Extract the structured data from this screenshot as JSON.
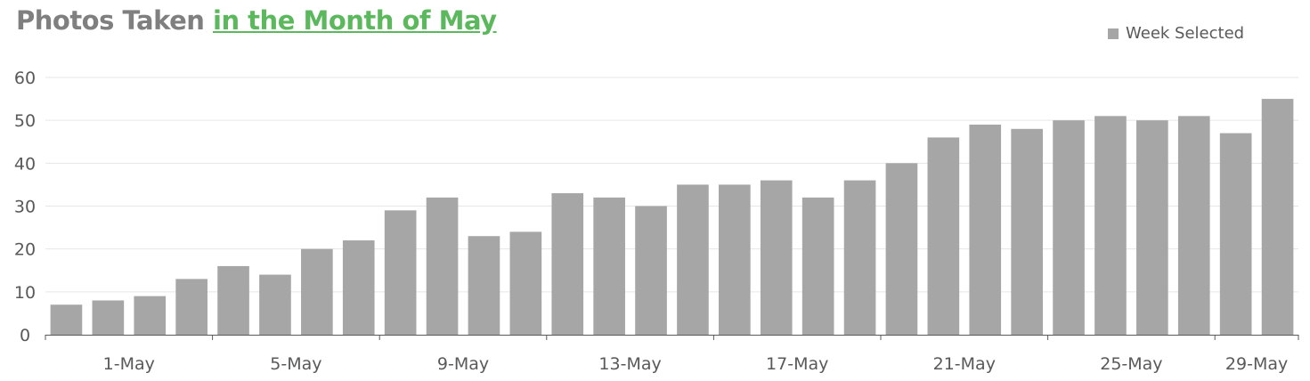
{
  "title": {
    "main": "Photos Taken ",
    "accent": "in the Month of May"
  },
  "colors": {
    "bar": "#a6a6a6",
    "accent": "#5cb85c",
    "title": "#7f7f7f",
    "grid": "#e6e6e6",
    "axis": "#595959"
  },
  "chart_data": {
    "type": "bar",
    "title": "Photos Taken in the Month of May",
    "xlabel": "",
    "ylabel": "",
    "ylim": [
      0,
      60
    ],
    "yticks": [
      0,
      10,
      20,
      30,
      40,
      50,
      60
    ],
    "grid": true,
    "legend": "top-right",
    "categories": [
      "1-May",
      "2-May",
      "3-May",
      "4-May",
      "5-May",
      "6-May",
      "7-May",
      "8-May",
      "9-May",
      "10-May",
      "11-May",
      "12-May",
      "13-May",
      "14-May",
      "15-May",
      "16-May",
      "17-May",
      "18-May",
      "19-May",
      "20-May",
      "21-May",
      "22-May",
      "23-May",
      "24-May",
      "25-May",
      "26-May",
      "27-May",
      "28-May",
      "29-May",
      "30-May"
    ],
    "xtick_labels": [
      "1-May",
      "5-May",
      "9-May",
      "13-May",
      "17-May",
      "21-May",
      "25-May",
      "29-May"
    ],
    "series": [
      {
        "name": "Week Selected",
        "values": [
          7,
          8,
          9,
          13,
          16,
          14,
          20,
          22,
          29,
          32,
          23,
          24,
          33,
          32,
          30,
          35,
          35,
          36,
          32,
          36,
          40,
          46,
          49,
          48,
          50,
          51,
          50,
          51,
          47,
          55
        ]
      }
    ]
  }
}
